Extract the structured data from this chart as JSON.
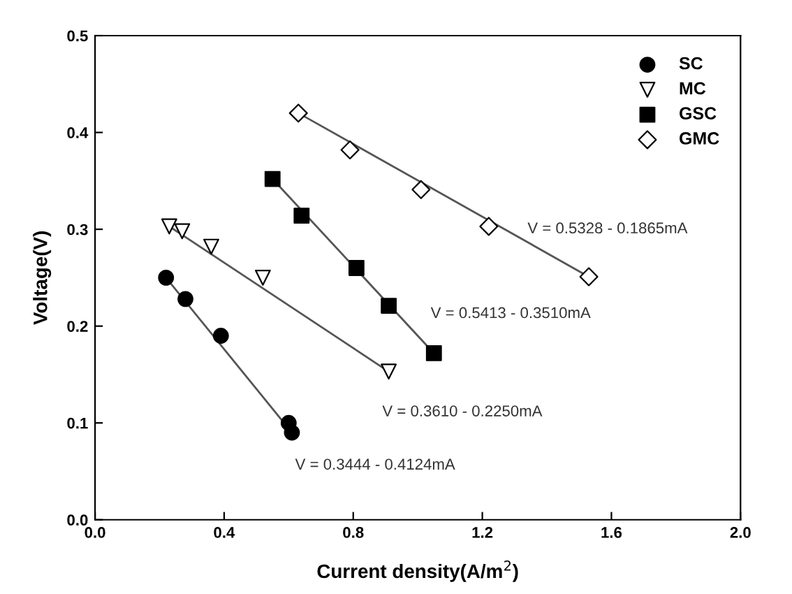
{
  "chart_data": {
    "type": "scatter",
    "xlabel": "Current density(A/m$^{2}$)",
    "ylabel": "Voltage(V)",
    "xlim": [
      0.0,
      2.0
    ],
    "ylim": [
      0.0,
      0.5
    ],
    "xticks": [
      {
        "value": 0,
        "label": "0.0"
      },
      0.4,
      0.8,
      1.2,
      1.6,
      {
        "value": 2,
        "label": "2.0"
      }
    ],
    "yticks": [
      {
        "value": 0,
        "label": "0.0"
      },
      0.1,
      0.2,
      0.3,
      0.4,
      0.5
    ],
    "grid": false,
    "legend": "top right",
    "series": [
      {
        "name": "SC",
        "color": "#000000",
        "marker": "circle",
        "x": [
          0.22,
          0.28,
          0.39,
          0.6,
          0.61
        ],
        "values": [
          0.25,
          0.228,
          0.19,
          0.1,
          0.09
        ]
      },
      {
        "name": "MC",
        "color": "#000000",
        "marker": "triangle",
        "x": [
          0.23,
          0.27,
          0.36,
          0.52,
          0.91
        ],
        "values": [
          0.303,
          0.298,
          0.282,
          0.25,
          0.153
        ]
      },
      {
        "name": "GSC",
        "color": "#000000",
        "marker": "square",
        "x": [
          0.55,
          0.64,
          0.81,
          0.91,
          1.05
        ],
        "values": [
          0.352,
          0.314,
          0.26,
          0.221,
          0.172
        ]
      },
      {
        "name": "GMC",
        "color": "#000000",
        "marker": "diamond",
        "x": [
          0.63,
          0.79,
          1.01,
          1.22,
          1.53
        ],
        "values": [
          0.42,
          0.382,
          0.341,
          0.303,
          0.251
        ]
      },
      {
        "type": "line",
        "color": "#555555",
        "x": [
          0.22,
          0.61
        ],
        "values": [
          0.25,
          0.09
        ]
      },
      {
        "type": "line",
        "color": "#555555",
        "x": [
          0.23,
          0.91
        ],
        "values": [
          0.303,
          0.153
        ]
      },
      {
        "type": "line",
        "color": "#555555",
        "x": [
          0.55,
          1.05
        ],
        "values": [
          0.352,
          0.172
        ]
      },
      {
        "type": "line",
        "color": "#555555",
        "x": [
          0.63,
          1.53
        ],
        "values": [
          0.42,
          0.251
        ]
      }
    ],
    "annotations": [
      "V = 0.5328 - 0.1865mA",
      "V = 0.5413 - 0.3510mA",
      "V = 0.3610 - 0.2250mA",
      "V = 0.3444 - 0.4124mA"
    ]
  }
}
